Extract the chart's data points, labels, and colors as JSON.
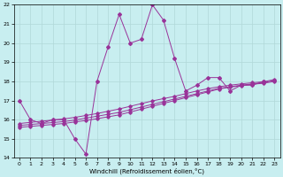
{
  "xlabel": "Windchill (Refroidissement éolien,°C)",
  "background_color": "#c8eef0",
  "grid_color": "#b0d8d8",
  "line_color": "#993399",
  "xlim": [
    -0.5,
    23.5
  ],
  "ylim": [
    14,
    22
  ],
  "yticks": [
    14,
    15,
    16,
    17,
    18,
    19,
    20,
    21,
    22
  ],
  "xticks": [
    0,
    1,
    2,
    3,
    4,
    5,
    6,
    7,
    8,
    9,
    10,
    11,
    12,
    13,
    14,
    15,
    16,
    17,
    18,
    19,
    20,
    21,
    22,
    23
  ],
  "main_x": [
    0,
    1,
    2,
    3,
    4,
    5,
    6,
    7,
    8,
    9,
    10,
    11,
    12,
    13,
    14,
    15,
    16,
    17,
    18,
    19,
    20,
    21,
    22
  ],
  "main_y": [
    17,
    16,
    15.8,
    16,
    16,
    15,
    14.2,
    18,
    19.8,
    21.5,
    20,
    20.2,
    22,
    21.2,
    19.2,
    17.5,
    17.8,
    18.2,
    18.2,
    17.5,
    17.8,
    17.8,
    18
  ],
  "trend_lines": [
    {
      "x": [
        0,
        1,
        2,
        3,
        4,
        5,
        6,
        7,
        8,
        9,
        10,
        11,
        12,
        13,
        14,
        15,
        16,
        17,
        18,
        19,
        20,
        21,
        22,
        23
      ],
      "y": [
        15.6,
        15.65,
        15.7,
        15.75,
        15.8,
        15.88,
        15.96,
        16.05,
        16.15,
        16.25,
        16.4,
        16.55,
        16.7,
        16.85,
        17.0,
        17.15,
        17.3,
        17.45,
        17.6,
        17.7,
        17.78,
        17.85,
        17.9,
        18.0
      ]
    },
    {
      "x": [
        0,
        1,
        2,
        3,
        4,
        5,
        6,
        7,
        8,
        9,
        10,
        11,
        12,
        13,
        14,
        15,
        16,
        17,
        18,
        19,
        20,
        21,
        22,
        23
      ],
      "y": [
        15.7,
        15.75,
        15.8,
        15.85,
        15.9,
        15.98,
        16.08,
        16.18,
        16.28,
        16.38,
        16.52,
        16.66,
        16.8,
        16.94,
        17.08,
        17.22,
        17.36,
        17.5,
        17.64,
        17.72,
        17.8,
        17.87,
        17.93,
        18.05
      ]
    },
    {
      "x": [
        0,
        1,
        2,
        3,
        4,
        5,
        6,
        7,
        8,
        9,
        10,
        11,
        12,
        13,
        14,
        15,
        16,
        17,
        18,
        19,
        20,
        21,
        22,
        23
      ],
      "y": [
        15.8,
        15.86,
        15.92,
        15.98,
        16.04,
        16.12,
        16.22,
        16.32,
        16.44,
        16.56,
        16.7,
        16.84,
        16.98,
        17.1,
        17.22,
        17.36,
        17.5,
        17.62,
        17.72,
        17.8,
        17.87,
        17.93,
        17.98,
        18.1
      ]
    }
  ]
}
